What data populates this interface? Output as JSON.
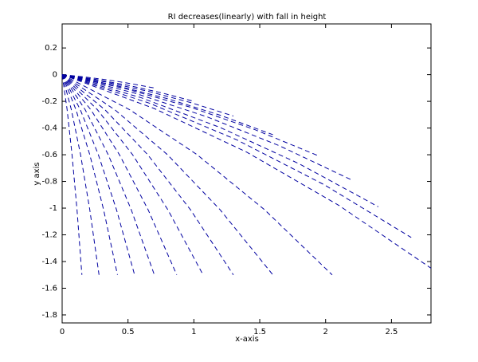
{
  "chart_data": {
    "type": "line",
    "title": "RI decreases(linearly) with fall in height",
    "xlabel": "x-axis",
    "ylabel": "y axis",
    "xlim": [
      0,
      2.8
    ],
    "ylim": [
      -1.86,
      0.38
    ],
    "xticks": [
      0,
      0.5,
      1,
      1.5,
      2,
      2.5
    ],
    "yticks": [
      -1.8,
      -1.6,
      -1.4,
      -1.2,
      -1,
      -0.8,
      -0.6,
      -0.4,
      -0.2,
      0,
      0.2
    ],
    "grid": false,
    "line_style": "dashed",
    "color": "#0000a0",
    "series": [
      {
        "x": [
          0,
          0.175,
          0.35,
          0.525,
          0.7
        ],
        "values": [
          0,
          -0.018,
          -0.04,
          -0.068,
          -0.1
        ]
      },
      {
        "x": [
          0,
          0.25,
          0.5,
          0.75,
          1
        ],
        "values": [
          0,
          -0.035,
          -0.08,
          -0.135,
          -0.2
        ]
      },
      {
        "x": [
          0,
          0.325,
          0.65,
          0.975,
          1.3
        ],
        "values": [
          0,
          -0.054,
          -0.124,
          -0.209,
          -0.31
        ]
      },
      {
        "x": [
          0,
          0.4,
          0.8,
          1.2,
          1.6
        ],
        "values": [
          0,
          -0.079,
          -0.18,
          -0.304,
          -0.45
        ]
      },
      {
        "x": [
          0,
          0.488,
          0.975,
          1.463,
          1.95
        ],
        "values": [
          0,
          -0.107,
          -0.244,
          -0.412,
          -0.61
        ]
      },
      {
        "x": [
          0,
          0.55,
          1.1,
          1.65,
          2.2
        ],
        "values": [
          0,
          -0.138,
          -0.316,
          -0.533,
          -0.79
        ]
      },
      {
        "x": [
          0,
          0.6,
          1.2,
          1.8,
          2.4
        ],
        "values": [
          0,
          -0.173,
          -0.396,
          -0.668,
          -0.99
        ]
      },
      {
        "x": [
          0,
          0.663,
          1.325,
          1.988,
          2.65
        ],
        "values": [
          0,
          -0.214,
          -0.488,
          -0.824,
          -1.22
        ]
      },
      {
        "x": [
          0,
          0.7,
          1.4,
          2.1,
          2.8
        ],
        "values": [
          0,
          -0.254,
          -0.58,
          -0.979,
          -1.45
        ]
      },
      {
        "x": [
          0,
          0.513,
          1.025,
          1.538,
          2.05
        ],
        "values": [
          0,
          -0.263,
          -0.6,
          -1.013,
          -1.5
        ]
      },
      {
        "x": [
          0,
          0.4,
          0.8,
          1.2,
          1.6
        ],
        "values": [
          0,
          -0.263,
          -0.6,
          -1.013,
          -1.5
        ]
      },
      {
        "x": [
          0,
          0.325,
          0.65,
          0.975,
          1.3
        ],
        "values": [
          0,
          -0.263,
          -0.6,
          -1.013,
          -1.5
        ]
      },
      {
        "x": [
          0,
          0.268,
          0.535,
          0.803,
          1.07
        ],
        "values": [
          0,
          -0.263,
          -0.6,
          -1.013,
          -1.5
        ]
      },
      {
        "x": [
          0,
          0.218,
          0.435,
          0.653,
          0.87
        ],
        "values": [
          0,
          -0.263,
          -0.6,
          -1.013,
          -1.5
        ]
      },
      {
        "x": [
          0,
          0.175,
          0.35,
          0.525,
          0.7
        ],
        "values": [
          0,
          -0.263,
          -0.6,
          -1.013,
          -1.5
        ]
      },
      {
        "x": [
          0,
          0.138,
          0.275,
          0.413,
          0.55
        ],
        "values": [
          0,
          -0.263,
          -0.6,
          -1.013,
          -1.5
        ]
      },
      {
        "x": [
          0,
          0.105,
          0.21,
          0.315,
          0.42
        ],
        "values": [
          0,
          -0.263,
          -0.6,
          -1.013,
          -1.5
        ]
      },
      {
        "x": [
          0,
          0.07,
          0.14,
          0.21,
          0.28
        ],
        "values": [
          0,
          -0.263,
          -0.6,
          -1.013,
          -1.5
        ]
      },
      {
        "x": [
          0,
          0.038,
          0.075,
          0.113,
          0.15
        ],
        "values": [
          0,
          -0.263,
          -0.6,
          -1.013,
          -1.5
        ]
      }
    ]
  }
}
